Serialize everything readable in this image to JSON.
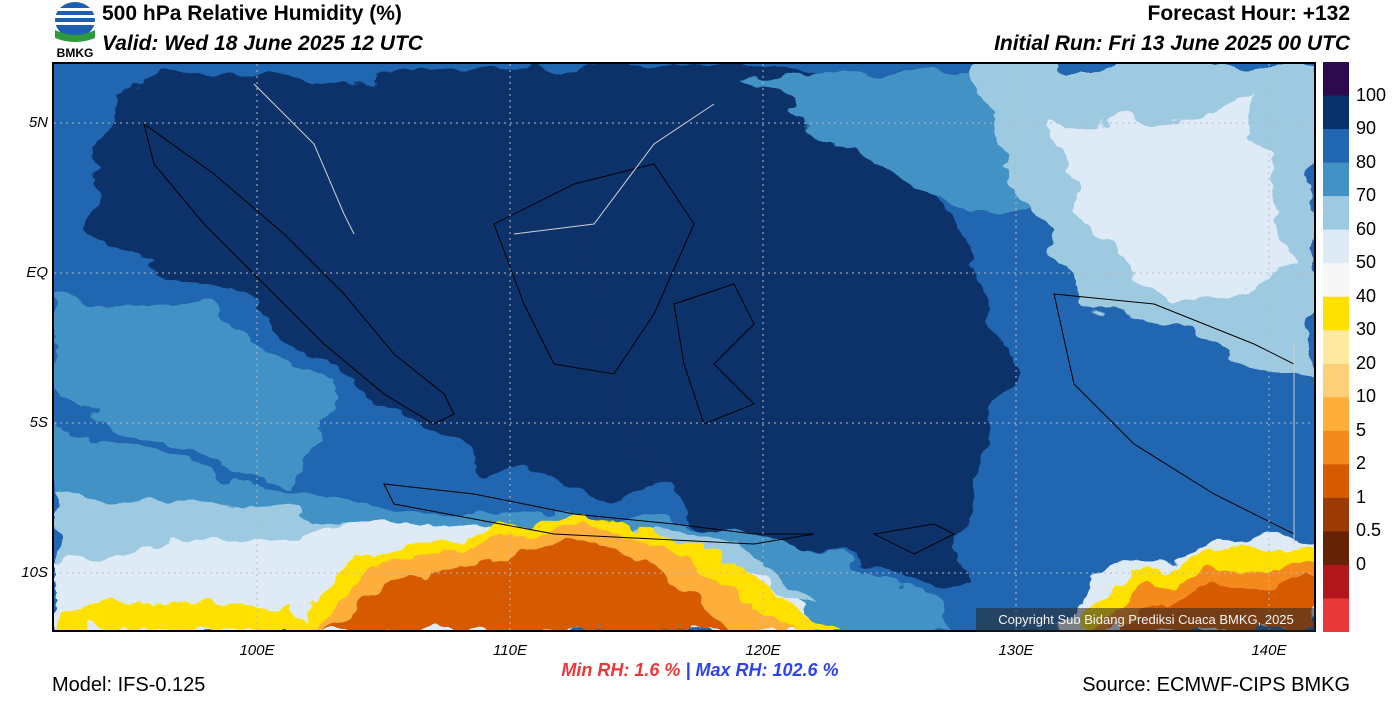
{
  "header": {
    "title": "500 hPa Relative Humidity (%)",
    "valid": "Valid: Wed 18 June 2025 12 UTC",
    "forecast_hour": "Forecast Hour: +132",
    "initial_run": "Initial Run: Fri 13 June 2025 00 UTC",
    "logo_text": "BMKG"
  },
  "axes": {
    "lat_labels": [
      "5N",
      "EQ",
      "5S",
      "10S"
    ],
    "lon_labels": [
      "100E",
      "110E",
      "120E",
      "130E",
      "140E"
    ],
    "lon_range": [
      92,
      142
    ],
    "lat_range": [
      -12,
      7
    ]
  },
  "colorbar": {
    "levels": [
      "100",
      "90",
      "80",
      "70",
      "60",
      "50",
      "40",
      "30",
      "20",
      "10",
      "5",
      "2",
      "1",
      "0.5",
      "0"
    ],
    "colors": [
      "#2d0a4e",
      "#08306b",
      "#2166b0",
      "#4292c6",
      "#9ecae1",
      "#deebf7",
      "#f7f7f7",
      "#ffe100",
      "#ffe9a0",
      "#ffd07a",
      "#fdae3b",
      "#f48a1c",
      "#d65a00",
      "#9c3a05",
      "#652206",
      "#b2161d",
      "#e8383a"
    ]
  },
  "stats": {
    "min_label": "Min RH:   1.6 %",
    "separator": "|",
    "max_label": "Max RH: 102.6 %"
  },
  "footer": {
    "model": "Model: IFS-0.125",
    "source": "Source: ECMWF-CIPS BMKG",
    "copyright": "Copyright Sub Bidang Prediksi Cuaca BMKG, 2025"
  }
}
